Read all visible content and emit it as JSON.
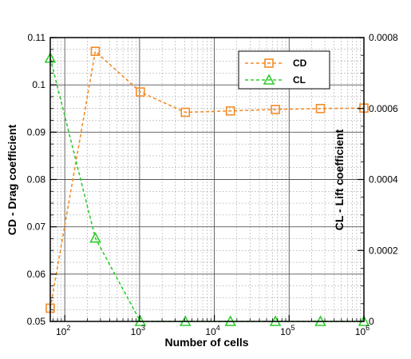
{
  "chart_data": {
    "type": "line",
    "xlabel": "Number of cells",
    "ylabel_left": "CD - Drag coefficient",
    "ylabel_right": "CL - Lift coefficient",
    "x_scale": "log",
    "xlim": [
      64,
      1000000
    ],
    "ylim_left": [
      0.05,
      0.11
    ],
    "ylim_right": [
      0,
      0.0008
    ],
    "x_ticks": [
      {
        "value": 100,
        "base": "10",
        "exp": "2"
      },
      {
        "value": 1000,
        "base": "10",
        "exp": "3"
      },
      {
        "value": 10000,
        "base": "10",
        "exp": "4"
      },
      {
        "value": 100000,
        "base": "10",
        "exp": "5"
      },
      {
        "value": 1000000,
        "base": "10",
        "exp": "6"
      }
    ],
    "y_ticks_left": [
      "0.05",
      "0.06",
      "0.07",
      "0.08",
      "0.09",
      "0.1",
      "0.11"
    ],
    "y_ticks_right": [
      "0",
      "0.0002",
      "0.0004",
      "0.0006",
      "0.0008"
    ],
    "grid": true,
    "legend_position": "top-right",
    "series": [
      {
        "name": "CD",
        "axis": "left",
        "color": "#f28c28",
        "marker": "square",
        "x": [
          64,
          256,
          1024,
          4096,
          16384,
          65536,
          262144,
          1000000
        ],
        "y": [
          0.0528,
          0.1071,
          0.0985,
          0.0942,
          0.0945,
          0.0948,
          0.095,
          0.0951
        ]
      },
      {
        "name": "CL",
        "axis": "right",
        "color": "#2ecc2e",
        "marker": "triangle",
        "x": [
          64,
          256,
          1024,
          4096,
          16384,
          65536,
          262144,
          1000000
        ],
        "y": [
          0.000742,
          0.000235,
          0.0,
          0.0,
          0.0,
          0.0,
          0.0,
          0.0
        ]
      }
    ]
  }
}
